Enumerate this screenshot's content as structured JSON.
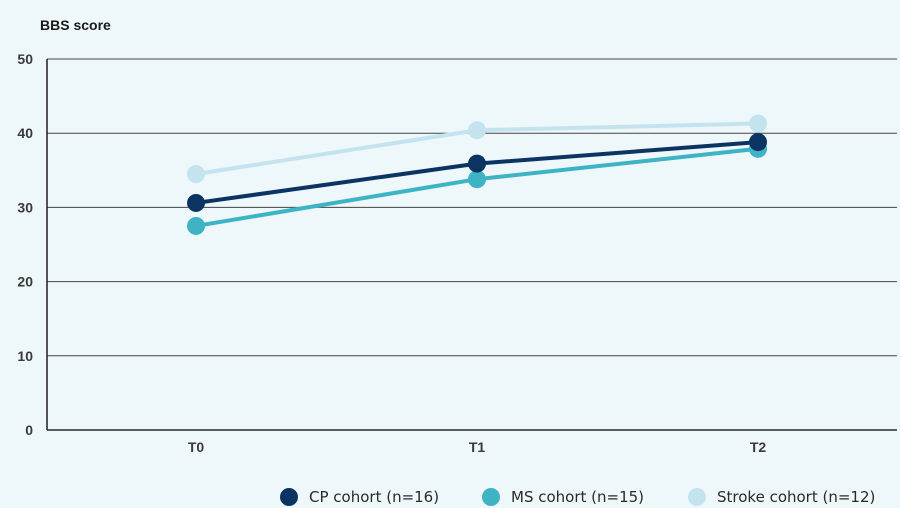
{
  "chart_data": {
    "type": "line",
    "ylabel": "BBS score",
    "categories": [
      "T0",
      "T1",
      "T2"
    ],
    "ylim": [
      0,
      50
    ],
    "yticks": [
      0,
      10,
      20,
      30,
      40,
      50
    ],
    "grid": true,
    "legend_position": "bottom-right",
    "series": [
      {
        "name": "CP cohort (n=16)",
        "color": "#0c3462",
        "values": [
          30.6,
          35.9,
          38.8
        ]
      },
      {
        "name": "MS cohort (n=15)",
        "color": "#3db3c4",
        "values": [
          27.5,
          33.8,
          37.9
        ]
      },
      {
        "name": "Stroke cohort (n=12)",
        "color": "#c3e4ef",
        "values": [
          34.5,
          40.4,
          41.3
        ]
      }
    ]
  }
}
